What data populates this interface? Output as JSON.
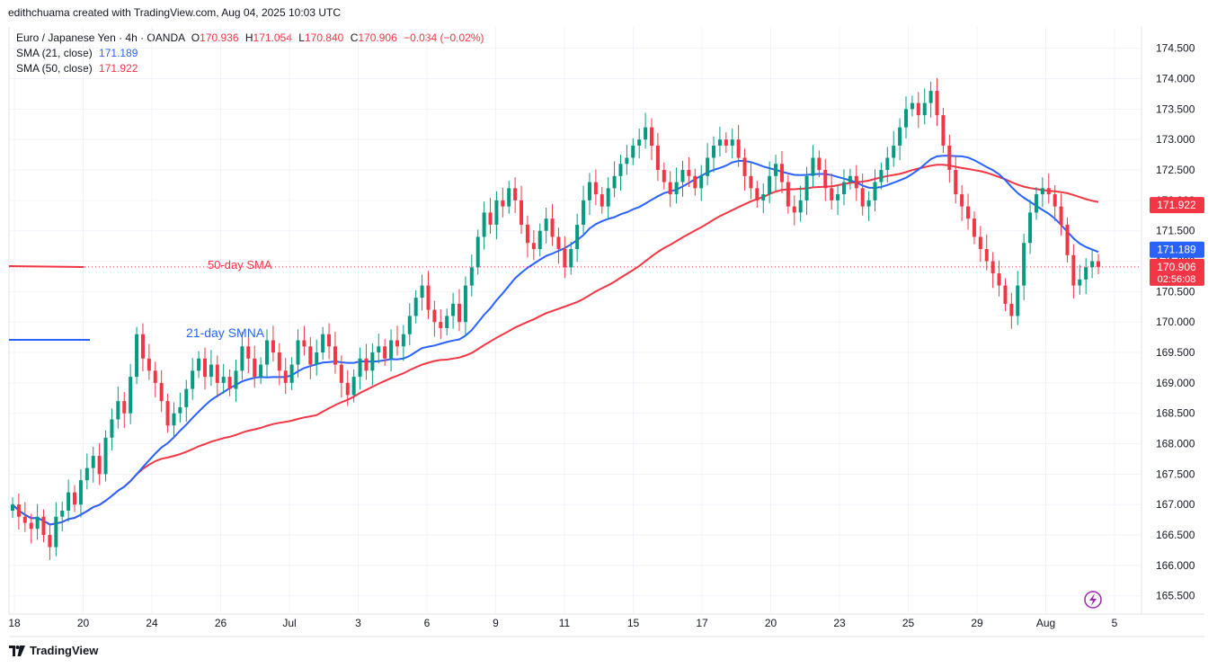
{
  "header": {
    "credit": "edithchuama created with TradingView.com, Aug 04, 2025 10:03 UTC"
  },
  "legend": {
    "symbol": "Euro / Japanese Yen · 4h · OANDA",
    "open_label": "O",
    "open": "170.936",
    "high_label": "H",
    "high": "171.054",
    "low_label": "L",
    "low": "170.840",
    "close_label": "C",
    "close": "170.906",
    "change": "−0.034 (−0.02%)",
    "sma21_label": "SMA (21, close)",
    "sma21_value": "171.189",
    "sma50_label": "SMA (50, close)",
    "sma50_value": "171.922"
  },
  "footer": {
    "brand": "TradingView"
  },
  "colors": {
    "up": "#089981",
    "down": "#f23645",
    "sma21": "#2962ff",
    "sma50": "#f23645"
  },
  "icons": {
    "brand": "tradingview-logo-icon",
    "replay": "lightning-icon"
  },
  "chart_data": {
    "type": "candlestick",
    "y_ticks": [
      "165.500",
      "166.000",
      "166.500",
      "167.000",
      "167.500",
      "168.000",
      "168.500",
      "169.000",
      "169.500",
      "170.000",
      "170.500",
      "171.000",
      "171.500",
      "172.000",
      "172.500",
      "173.000",
      "173.500",
      "174.000",
      "174.500"
    ],
    "x_ticks": [
      "18",
      "20",
      "24",
      "26",
      "Jul",
      "3",
      "6",
      "9",
      "11",
      "15",
      "17",
      "20",
      "23",
      "25",
      "29",
      "Aug",
      "5"
    ],
    "ylim": [
      165.2,
      174.85
    ],
    "price_badges": [
      {
        "value": "171.922",
        "color": "#f23645"
      },
      {
        "value": "171.189",
        "color": "#2962ff"
      },
      {
        "value": "170.906",
        "color": "#f23645",
        "sub": "02:56:08"
      }
    ],
    "annotations": [
      "50-day SMA",
      "21-day SMNA"
    ],
    "candle_closes": [
      167.0,
      166.8,
      166.7,
      166.6,
      166.8,
      166.5,
      166.3,
      166.8,
      166.9,
      167.2,
      167.0,
      167.4,
      167.6,
      167.8,
      167.5,
      168.1,
      168.4,
      168.7,
      168.5,
      169.1,
      169.8,
      169.4,
      169.2,
      169.0,
      168.7,
      168.3,
      168.5,
      168.6,
      168.9,
      169.2,
      169.4,
      169.1,
      169.3,
      169.0,
      169.1,
      168.9,
      169.2,
      169.6,
      169.4,
      169.1,
      169.3,
      169.7,
      169.5,
      169.2,
      169.0,
      169.3,
      169.7,
      169.6,
      169.3,
      169.5,
      169.8,
      169.6,
      169.3,
      169.0,
      168.8,
      169.1,
      169.4,
      169.2,
      169.5,
      169.6,
      169.4,
      169.7,
      169.6,
      169.8,
      170.1,
      170.4,
      170.6,
      170.2,
      170.0,
      169.9,
      170.1,
      170.3,
      170.0,
      170.6,
      170.9,
      171.4,
      171.8,
      171.6,
      172.0,
      171.9,
      172.2,
      172.0,
      171.6,
      171.3,
      171.2,
      171.5,
      171.7,
      171.4,
      171.2,
      170.9,
      171.2,
      171.6,
      172.0,
      172.3,
      172.1,
      171.9,
      172.2,
      172.4,
      172.6,
      172.7,
      172.9,
      173.0,
      173.2,
      172.9,
      172.5,
      172.3,
      172.1,
      172.3,
      172.5,
      172.4,
      172.2,
      172.4,
      172.7,
      172.9,
      173.0,
      172.9,
      173.0,
      172.7,
      172.4,
      172.2,
      172.0,
      172.1,
      172.4,
      172.6,
      172.3,
      171.9,
      171.8,
      172.0,
      172.4,
      172.7,
      172.5,
      172.2,
      172.0,
      172.1,
      172.3,
      172.4,
      172.2,
      171.9,
      172.0,
      172.3,
      172.5,
      172.7,
      172.9,
      173.2,
      173.5,
      173.6,
      173.4,
      173.6,
      173.8,
      173.4,
      172.9,
      172.5,
      172.1,
      171.9,
      171.7,
      171.4,
      171.2,
      171.0,
      170.8,
      170.6,
      170.3,
      170.1,
      170.6,
      171.3,
      171.8,
      172.1,
      172.2,
      172.1,
      171.9,
      171.6,
      171.1,
      170.6,
      170.7,
      170.9,
      171.0,
      170.906
    ]
  }
}
